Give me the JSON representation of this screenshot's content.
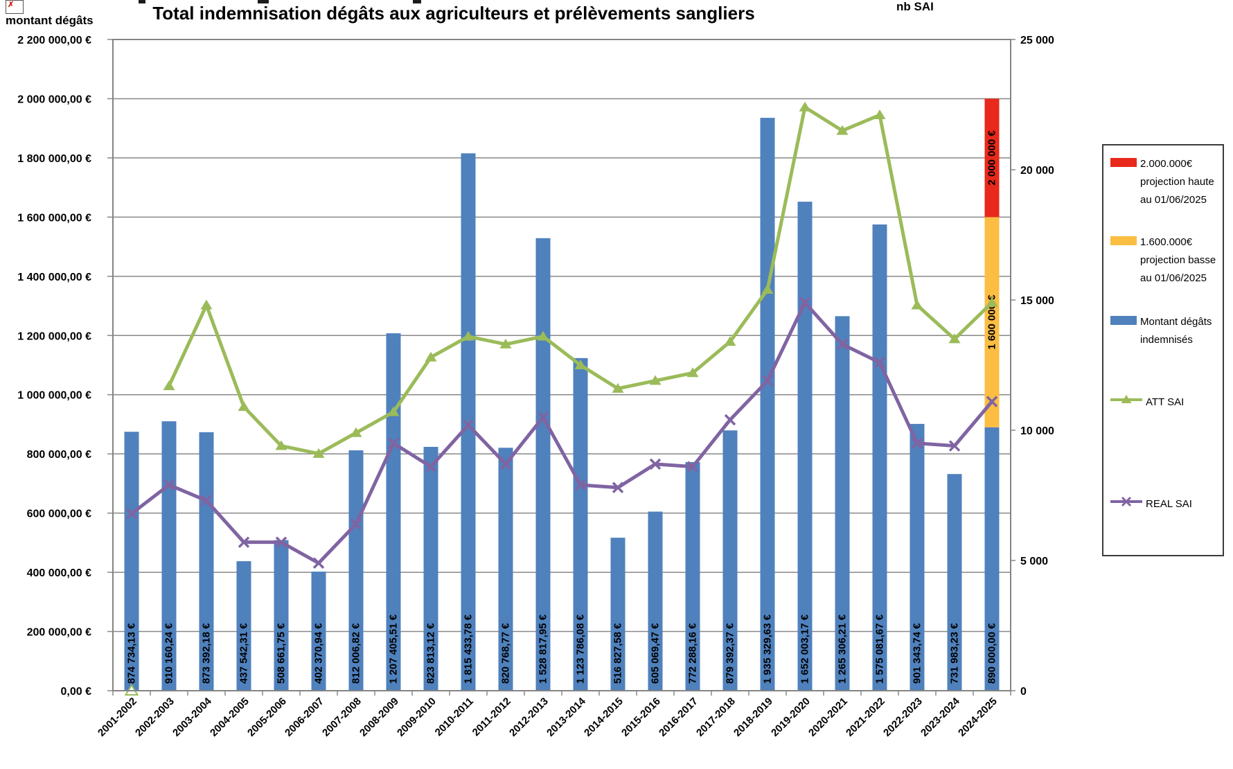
{
  "header": {
    "left_axis_corner_label": "montant dégâts",
    "right_axis_corner_label": "nb SAI"
  },
  "chart_data": {
    "type": "bar",
    "subtype": "combo-bar-line-dual-axis",
    "title": "Total indemnisation dégâts aux agriculteurs et prélèvements sangliers",
    "grid": true,
    "categories": [
      "2001-2002",
      "2002-2003",
      "2003-2004",
      "2004-2005",
      "2005-2006",
      "2006-2007",
      "2007-2008",
      "2008-2009",
      "2009-2010",
      "2010-2011",
      "2011-2012",
      "2012-2013",
      "2013-2014",
      "2014-2015",
      "2015-2016",
      "2016-2017",
      "2017-2018",
      "2018-2019",
      "2019-2020",
      "2020-2021",
      "2021-2022",
      "2022-2023",
      "2023-2024",
      "2024-2025"
    ],
    "left_axis": {
      "corner_label": "montant dégâts",
      "min": 0,
      "max": 2200000,
      "step": 200000,
      "tick_labels": [
        "2 200 000,00 €",
        "2 000 000,00 €",
        "1 800 000,00 €",
        "1 600 000,00 €",
        "1 400 000,00 €",
        "1 200 000,00 €",
        "1 000 000,00 €",
        "800 000,00 €",
        "600 000,00 €",
        "400 000,00 €",
        "200 000,00 €",
        "0,00 €"
      ]
    },
    "right_axis": {
      "corner_label": "nb SAI",
      "min": 0,
      "max": 25000,
      "step": 5000,
      "tick_labels": [
        "25 000",
        "20 000",
        "15 000",
        "10 000",
        "5 000",
        "0"
      ]
    },
    "series": [
      {
        "name": "Montant dégâts indemnisés",
        "type": "bar",
        "axis": "left",
        "color": "#4F81BD",
        "values": [
          874734.13,
          910160.24,
          873392.18,
          437542.31,
          508661.75,
          402370.94,
          812006.82,
          1207405.51,
          823813.12,
          1815433.78,
          820768.77,
          1528817.95,
          1123786.08,
          516827.58,
          605069.47,
          772288.16,
          879392.37,
          1935329.63,
          1652003.17,
          1265306.21,
          1575081.67,
          901343.74,
          731983.23,
          890000.0
        ],
        "value_labels": [
          "874 734,13 €",
          "910 160,24 €",
          "873 392,18 €",
          "437 542,31 €",
          "508 661,75 €",
          "402 370,94 €",
          "812 006,82 €",
          "1 207 405,51 €",
          "823 813,12 €",
          "1 815 433,78 €",
          "820 768,77 €",
          "1 528 817,95 €",
          "1 123 786,08 €",
          "516 827,58 €",
          "605 069,47 €",
          "772 288,16 €",
          "879 392,37 €",
          "1 935 329,63 €",
          "1 652 003,17 €",
          "1 265 306,21 €",
          "1 575 081,67 €",
          "901 343,74 €",
          "731 983,23 €",
          "890 000,00 €"
        ]
      },
      {
        "name": "ATT SAI",
        "type": "line",
        "axis": "right",
        "color": "#9BBB59",
        "marker": "triangle",
        "skip_first_segment": true,
        "first_marker_hollow": true,
        "values": [
          0,
          11700,
          14800,
          10900,
          9400,
          9100,
          9900,
          10700,
          12800,
          13600,
          13300,
          13600,
          12500,
          11600,
          11900,
          12200,
          13400,
          15400,
          22400,
          21500,
          22100,
          14800,
          13500,
          14900
        ]
      },
      {
        "name": "REAL SAI",
        "type": "line",
        "axis": "right",
        "color": "#8064A2",
        "marker": "x",
        "values": [
          6800,
          7900,
          7300,
          5700,
          5700,
          4900,
          6400,
          9500,
          8600,
          10200,
          8700,
          10500,
          7900,
          7800,
          8700,
          8600,
          10400,
          11900,
          14900,
          13300,
          12600,
          9500,
          9400,
          11100
        ]
      }
    ],
    "projection": {
      "category": "2024-2025",
      "segments": [
        {
          "name": "projection basse",
          "from": 890000,
          "to": 1600000,
          "color": "#FBBD42",
          "label": "1 600 000 €"
        },
        {
          "name": "projection haute",
          "from": 1600000,
          "to": 2000000,
          "color": "#E8291B",
          "label": "2 000 000 €"
        }
      ]
    },
    "legend": [
      {
        "swatch": "rect",
        "color": "#E8291B",
        "label": "2.000.000€\nprojection haute\nau 01/06/2025"
      },
      {
        "swatch": "rect",
        "color": "#FBBD42",
        "label": "1.600.000€\nprojection basse\nau 01/06/2025"
      },
      {
        "swatch": "rect",
        "color": "#4F81BD",
        "label": "Montant dégâts\nindemnisés"
      },
      {
        "swatch": "line-triangle",
        "color": "#9BBB59",
        "label": "ATT SAI"
      },
      {
        "swatch": "line-x",
        "color": "#8064A2",
        "label": "REAL SAI"
      }
    ]
  }
}
